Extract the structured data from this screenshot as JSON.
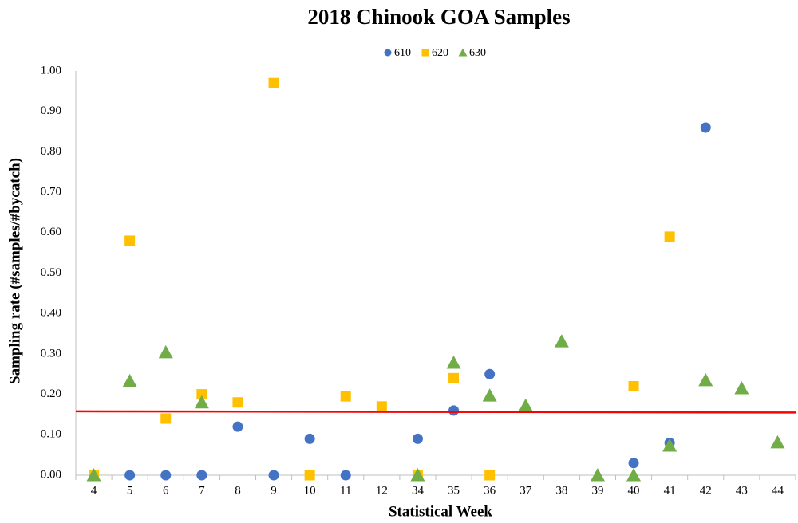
{
  "chart_data": {
    "type": "scatter",
    "title": "2018 Chinook GOA Samples",
    "x_label": "Statistical Week",
    "y_label": "Sampling rate (#samples/#bycatch)",
    "categories": [
      "4",
      "5",
      "6",
      "7",
      "8",
      "9",
      "10",
      "11",
      "12",
      "34",
      "35",
      "36",
      "37",
      "38",
      "39",
      "40",
      "41",
      "42",
      "43",
      "44"
    ],
    "series": [
      {
        "name": "610",
        "color": "#4472c4",
        "marker": "circle",
        "values": [
          null,
          0,
          0,
          0,
          0.12,
          0,
          0.09,
          0,
          null,
          0.09,
          0.16,
          0.25,
          null,
          null,
          null,
          0.03,
          0.08,
          0.86,
          null,
          null
        ]
      },
      {
        "name": "620",
        "color": "#ffc000",
        "marker": "square",
        "values": [
          0,
          0.58,
          0.14,
          0.2,
          0.18,
          0.97,
          0,
          0.195,
          0.17,
          0,
          0.24,
          0,
          null,
          null,
          null,
          0.22,
          0.59,
          null,
          null,
          null
        ]
      },
      {
        "name": "630",
        "color": "#70ad47",
        "marker": "triangle",
        "values": [
          0,
          0.233,
          0.304,
          0.18,
          null,
          null,
          null,
          null,
          null,
          0,
          0.278,
          0.197,
          0.172,
          0.331,
          0,
          0,
          0.073,
          0.235,
          0.215,
          0.081
        ]
      }
    ],
    "trendline": {
      "color": "#ff0000",
      "values": [
        0.158,
        0.155
      ]
    },
    "ylim": [
      0,
      1
    ],
    "yticks": [
      {
        "value": 0,
        "label": "0.00"
      },
      {
        "value": 0.1,
        "label": "0.10"
      },
      {
        "value": 0.2,
        "label": "0.20"
      },
      {
        "value": 0.3,
        "label": "0.30"
      },
      {
        "value": 0.4,
        "label": "0.40"
      },
      {
        "value": 0.5,
        "label": "0.50"
      },
      {
        "value": 0.6,
        "label": "0.60"
      },
      {
        "value": 0.7,
        "label": "0.70"
      },
      {
        "value": 0.8,
        "label": "0.80"
      },
      {
        "value": 0.9,
        "label": "0.90"
      },
      {
        "value": 1,
        "label": "1.00"
      }
    ],
    "legend": "top"
  }
}
